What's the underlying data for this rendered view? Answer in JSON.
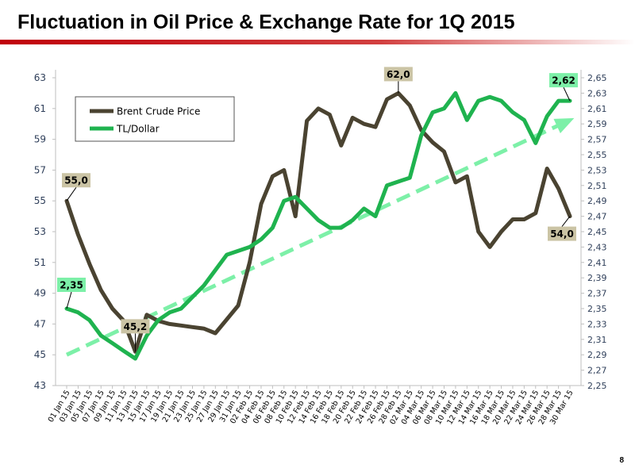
{
  "page": {
    "title": "Fluctuation in Oil Price & Exchange Rate for 1Q 2015",
    "page_number": "8"
  },
  "colors": {
    "title_rule_start": "#c0000a",
    "title_rule_end": "#ffffff",
    "brent": "#4a4331",
    "tl_dollar": "#1fb34f",
    "trend": "#7df0a8",
    "label_bg_brent": "#cbc4a5",
    "label_bg_tl": "#7df0a8",
    "axis_text": "#2f3f5a"
  },
  "chart_data": {
    "type": "line",
    "title": "",
    "legend": {
      "position": "top-left",
      "entries": [
        "Brent Crude Price",
        "TL/Dollar"
      ]
    },
    "grid": false,
    "x": [
      "01 Jan 15",
      "03 Jan 15",
      "05 Jan 15",
      "07 Jan 15",
      "09 Jan 15",
      "11 Jan 15",
      "13 Jan 15",
      "15 Jan 15",
      "17 Jan 15",
      "19 Jan 15",
      "21 Jan 15",
      "23 Jan 15",
      "25 Jan 15",
      "27 Jan 15",
      "29 Jan 15",
      "31 Jan 15",
      "02 Feb 15",
      "04 Feb 15",
      "06 Feb 15",
      "08 Feb 15",
      "10 Feb 15",
      "12 Feb 15",
      "14 Feb 15",
      "16 Feb 15",
      "18 Feb 15",
      "20 Feb 15",
      "22 Feb 15",
      "24 Feb 15",
      "26 Feb 15",
      "28 Feb 15",
      "02 Mar 15",
      "04 Mar 15",
      "06 Mar 15",
      "08 Mar 15",
      "10 Mar 15",
      "12 Mar 15",
      "14 Mar 15",
      "16 Mar 15",
      "18 Mar 15",
      "20 Mar 15",
      "22 Mar 15",
      "24 Mar 15",
      "26 Mar 15",
      "28 Mar 15",
      "30 Mar 15"
    ],
    "y_left": {
      "min": 43,
      "max": 63,
      "ticks": [
        "43",
        "45",
        "47",
        "49",
        "51",
        "53",
        "55",
        "57",
        "59",
        "61",
        "63"
      ]
    },
    "y_right": {
      "min": 2.25,
      "max": 2.65,
      "ticks": [
        "2,25",
        "2,27",
        "2,29",
        "2,31",
        "2,33",
        "2,35",
        "2,37",
        "2,39",
        "2,41",
        "2,43",
        "2,45",
        "2,47",
        "2,49",
        "2,51",
        "2,53",
        "2,55",
        "2,57",
        "2,59",
        "2,61",
        "2,63",
        "2,65"
      ]
    },
    "series": [
      {
        "name": "Brent Crude Price",
        "axis": "left",
        "values": [
          55.0,
          52.8,
          50.9,
          49.2,
          48.0,
          47.2,
          45.2,
          47.6,
          47.2,
          47.0,
          46.9,
          46.8,
          46.7,
          46.4,
          47.3,
          48.2,
          51.0,
          54.8,
          56.6,
          57.0,
          54.0,
          60.2,
          61.0,
          60.6,
          58.6,
          60.4,
          60.0,
          59.8,
          61.6,
          62.0,
          61.2,
          59.6,
          58.8,
          58.2,
          56.2,
          56.6,
          53.0,
          52.0,
          53.0,
          53.8,
          53.8,
          54.2,
          57.1,
          55.8,
          54.0
        ],
        "labels": [
          {
            "index": 0,
            "text": "55,0"
          },
          {
            "index": 6,
            "text": "45,2"
          },
          {
            "index": 29,
            "text": "62,0"
          },
          {
            "index": 44,
            "text": "54,0"
          }
        ]
      },
      {
        "name": "TL/Dollar",
        "axis": "right",
        "values": [
          2.35,
          2.345,
          2.335,
          2.315,
          2.305,
          2.295,
          2.285,
          2.315,
          2.335,
          2.345,
          2.35,
          2.365,
          2.38,
          2.4,
          2.42,
          2.425,
          2.43,
          2.44,
          2.455,
          2.49,
          2.495,
          2.48,
          2.465,
          2.455,
          2.455,
          2.465,
          2.48,
          2.47,
          2.51,
          2.515,
          2.52,
          2.575,
          2.605,
          2.61,
          2.63,
          2.595,
          2.62,
          2.625,
          2.62,
          2.605,
          2.595,
          2.565,
          2.6,
          2.62,
          2.62
        ],
        "labels": [
          {
            "index": 0,
            "text": "2,35"
          },
          {
            "index": 44,
            "text": "2,62"
          }
        ]
      }
    ],
    "trend_line": {
      "axis": "right",
      "start": 2.29,
      "end": 2.595
    }
  }
}
